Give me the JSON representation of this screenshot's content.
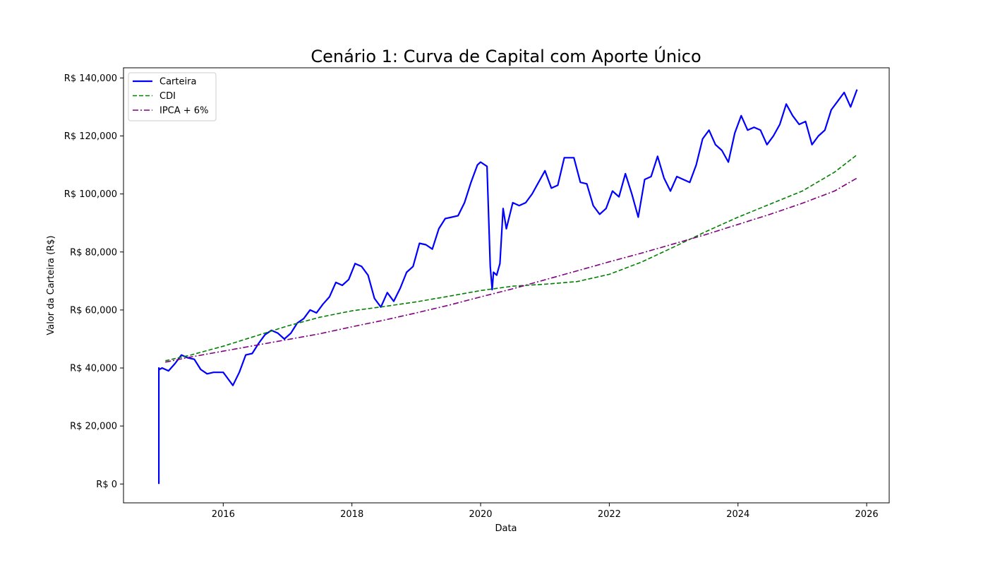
{
  "chart_data": {
    "type": "line",
    "title": "Cenário 1: Curva de Capital com Aporte Único",
    "xlabel": "Data",
    "ylabel": "Valor da Carteira (R$)",
    "xlim": [
      2014.45,
      2026.35
    ],
    "ylim": [
      -6500,
      143500
    ],
    "x_ticks": [
      2016,
      2018,
      2020,
      2022,
      2024,
      2026
    ],
    "x_tick_labels": [
      "2016",
      "2018",
      "2020",
      "2022",
      "2024",
      "2026"
    ],
    "y_ticks": [
      0,
      20000,
      40000,
      60000,
      80000,
      100000,
      120000,
      140000
    ],
    "y_tick_labels": [
      "R$ 0",
      "R$ 20,000",
      "R$ 40,000",
      "R$ 60,000",
      "R$ 80,000",
      "R$ 100,000",
      "R$ 120,000",
      "R$ 140,000"
    ],
    "grid": false,
    "legend_position": "top-left",
    "series": [
      {
        "name": "Carteira",
        "color": "#0000ff",
        "style": "solid",
        "x": [
          2015.0,
          2015.0,
          2015.01,
          2015.05,
          2015.15,
          2015.25,
          2015.35,
          2015.45,
          2015.55,
          2015.65,
          2015.75,
          2015.85,
          2016.0,
          2016.05,
          2016.15,
          2016.25,
          2016.35,
          2016.45,
          2016.55,
          2016.65,
          2016.75,
          2016.85,
          2016.95,
          2017.05,
          2017.15,
          2017.25,
          2017.35,
          2017.45,
          2017.55,
          2017.65,
          2017.75,
          2017.85,
          2017.95,
          2018.05,
          2018.15,
          2018.25,
          2018.35,
          2018.45,
          2018.55,
          2018.65,
          2018.75,
          2018.85,
          2018.95,
          2019.05,
          2019.15,
          2019.25,
          2019.35,
          2019.45,
          2019.55,
          2019.65,
          2019.75,
          2019.85,
          2019.95,
          2020.0,
          2020.1,
          2020.15,
          2020.18,
          2020.2,
          2020.25,
          2020.3,
          2020.35,
          2020.4,
          2020.5,
          2020.6,
          2020.7,
          2020.8,
          2020.9,
          2021.0,
          2021.1,
          2021.2,
          2021.3,
          2021.45,
          2021.55,
          2021.65,
          2021.75,
          2021.85,
          2021.95,
          2022.05,
          2022.15,
          2022.25,
          2022.35,
          2022.45,
          2022.55,
          2022.65,
          2022.75,
          2022.85,
          2022.95,
          2023.05,
          2023.15,
          2023.25,
          2023.35,
          2023.45,
          2023.55,
          2023.65,
          2023.75,
          2023.85,
          2023.95,
          2024.05,
          2024.15,
          2024.25,
          2024.35,
          2024.45,
          2024.55,
          2024.65,
          2024.75,
          2024.85,
          2024.95,
          2025.05,
          2025.15,
          2025.25,
          2025.35,
          2025.45,
          2025.55,
          2025.65,
          2025.75,
          2025.85
        ],
        "y": [
          0,
          40000,
          39500,
          40000,
          39000,
          41500,
          44500,
          43500,
          43000,
          39500,
          38000,
          38500,
          38500,
          37000,
          34000,
          38500,
          44500,
          45000,
          48500,
          51500,
          53000,
          52000,
          50000,
          52000,
          55500,
          57000,
          60000,
          59000,
          62000,
          64500,
          69500,
          68500,
          70500,
          76000,
          75000,
          72000,
          64000,
          61000,
          66000,
          63000,
          67500,
          73000,
          75000,
          83000,
          82500,
          81000,
          88000,
          91500,
          92000,
          92500,
          97000,
          104000,
          110000,
          111000,
          109500,
          75000,
          67000,
          73000,
          72000,
          76000,
          95000,
          88000,
          97000,
          96000,
          97000,
          100000,
          104000,
          108000,
          102000,
          103000,
          112500,
          112500,
          104000,
          103500,
          96000,
          93000,
          95000,
          101000,
          99000,
          107000,
          100000,
          92000,
          105000,
          106000,
          113000,
          105500,
          101000,
          106000,
          105000,
          104000,
          110000,
          119000,
          122000,
          117000,
          115000,
          111000,
          121000,
          127000,
          122000,
          123000,
          122000,
          117000,
          120000,
          124000,
          131000,
          127000,
          124000,
          125000,
          117000,
          120000,
          122000,
          129000,
          132000,
          135000,
          130000,
          136000
        ]
      },
      {
        "name": "CDI",
        "color": "#008000",
        "style": "dashed",
        "x": [
          2015.1,
          2015.5,
          2016.0,
          2016.5,
          2017.0,
          2017.5,
          2018.0,
          2018.5,
          2019.0,
          2019.5,
          2020.0,
          2020.5,
          2021.0,
          2021.5,
          2022.0,
          2022.5,
          2023.0,
          2023.5,
          2024.0,
          2024.5,
          2025.0,
          2025.5,
          2025.85
        ],
        "y": [
          42500,
          44500,
          47500,
          51000,
          54500,
          57500,
          59700,
          61200,
          62800,
          64700,
          66700,
          68200,
          68900,
          69800,
          72300,
          76500,
          81700,
          87000,
          92000,
          96500,
          101000,
          107500,
          113500
        ]
      },
      {
        "name": "IPCA + 6%",
        "color": "#800080",
        "style": "dashdot",
        "x": [
          2015.1,
          2015.5,
          2016.0,
          2016.5,
          2017.0,
          2017.5,
          2018.0,
          2018.5,
          2019.0,
          2019.5,
          2020.0,
          2020.5,
          2021.0,
          2021.5,
          2022.0,
          2022.5,
          2023.0,
          2023.5,
          2024.0,
          2024.5,
          2025.0,
          2025.5,
          2025.85
        ],
        "y": [
          42000,
          43800,
          45800,
          47800,
          49800,
          51800,
          54200,
          56500,
          59000,
          61600,
          64500,
          67300,
          70400,
          73500,
          76600,
          79600,
          82800,
          86000,
          89500,
          93000,
          96800,
          101000,
          105500
        ]
      }
    ]
  }
}
